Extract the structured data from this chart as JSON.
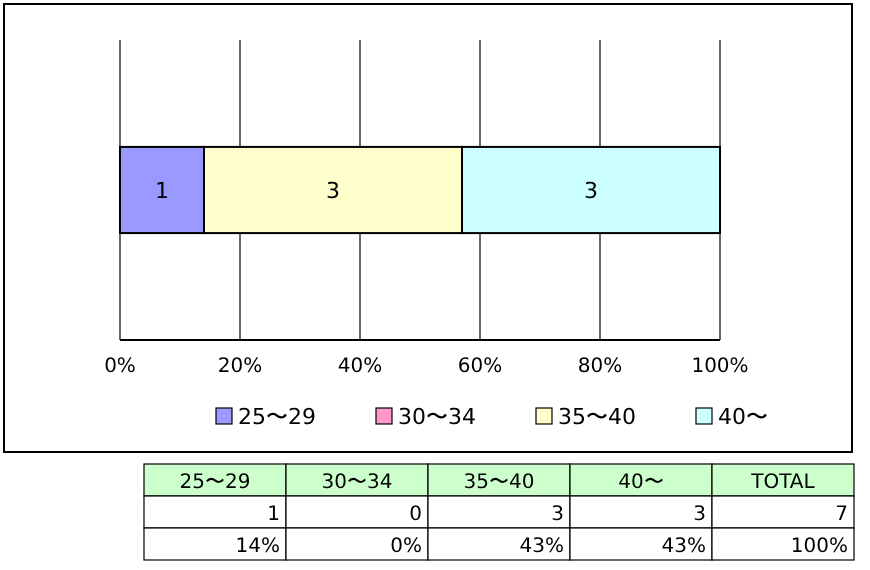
{
  "chart_data": [
    {
      "type": "bar",
      "orientation": "horizontal",
      "stacked": true,
      "categories": [
        null
      ],
      "series": [
        {
          "name": "25〜29",
          "color": "#9999ff",
          "values": [
            14
          ]
        },
        {
          "name": "30〜34",
          "color": "#ff99cc",
          "values": [
            0
          ]
        },
        {
          "name": "35〜40",
          "color": "#ffffcc",
          "values": [
            43
          ]
        },
        {
          "name": "40〜",
          "color": "#ccffff",
          "values": [
            43
          ]
        }
      ],
      "annotations": [
        "1",
        "3",
        "3"
      ],
      "xlim": [
        0,
        100
      ],
      "xticks": [
        {
          "value": 0,
          "label": "0%"
        },
        {
          "value": 20,
          "label": "20%"
        },
        {
          "value": 40,
          "label": "40%"
        },
        {
          "value": 60,
          "label": "60%"
        },
        {
          "value": 80,
          "label": "80%"
        },
        {
          "value": 100,
          "label": "100%"
        }
      ],
      "grid": "x",
      "legend": "bottom"
    },
    {
      "type": "other",
      "categories": [
        "25〜29",
        "30〜34",
        "35〜40",
        "40〜",
        "TOTAL"
      ],
      "series": [
        {
          "values": [
            1,
            0,
            3,
            3,
            7
          ],
          "value_labels": [
            "1",
            "0",
            "3",
            "3",
            "7"
          ]
        },
        {
          "values": [
            14,
            0,
            43,
            43,
            100
          ],
          "value_labels": [
            "14%",
            "0%",
            "43%",
            "43%",
            "100%"
          ]
        }
      ]
    }
  ]
}
